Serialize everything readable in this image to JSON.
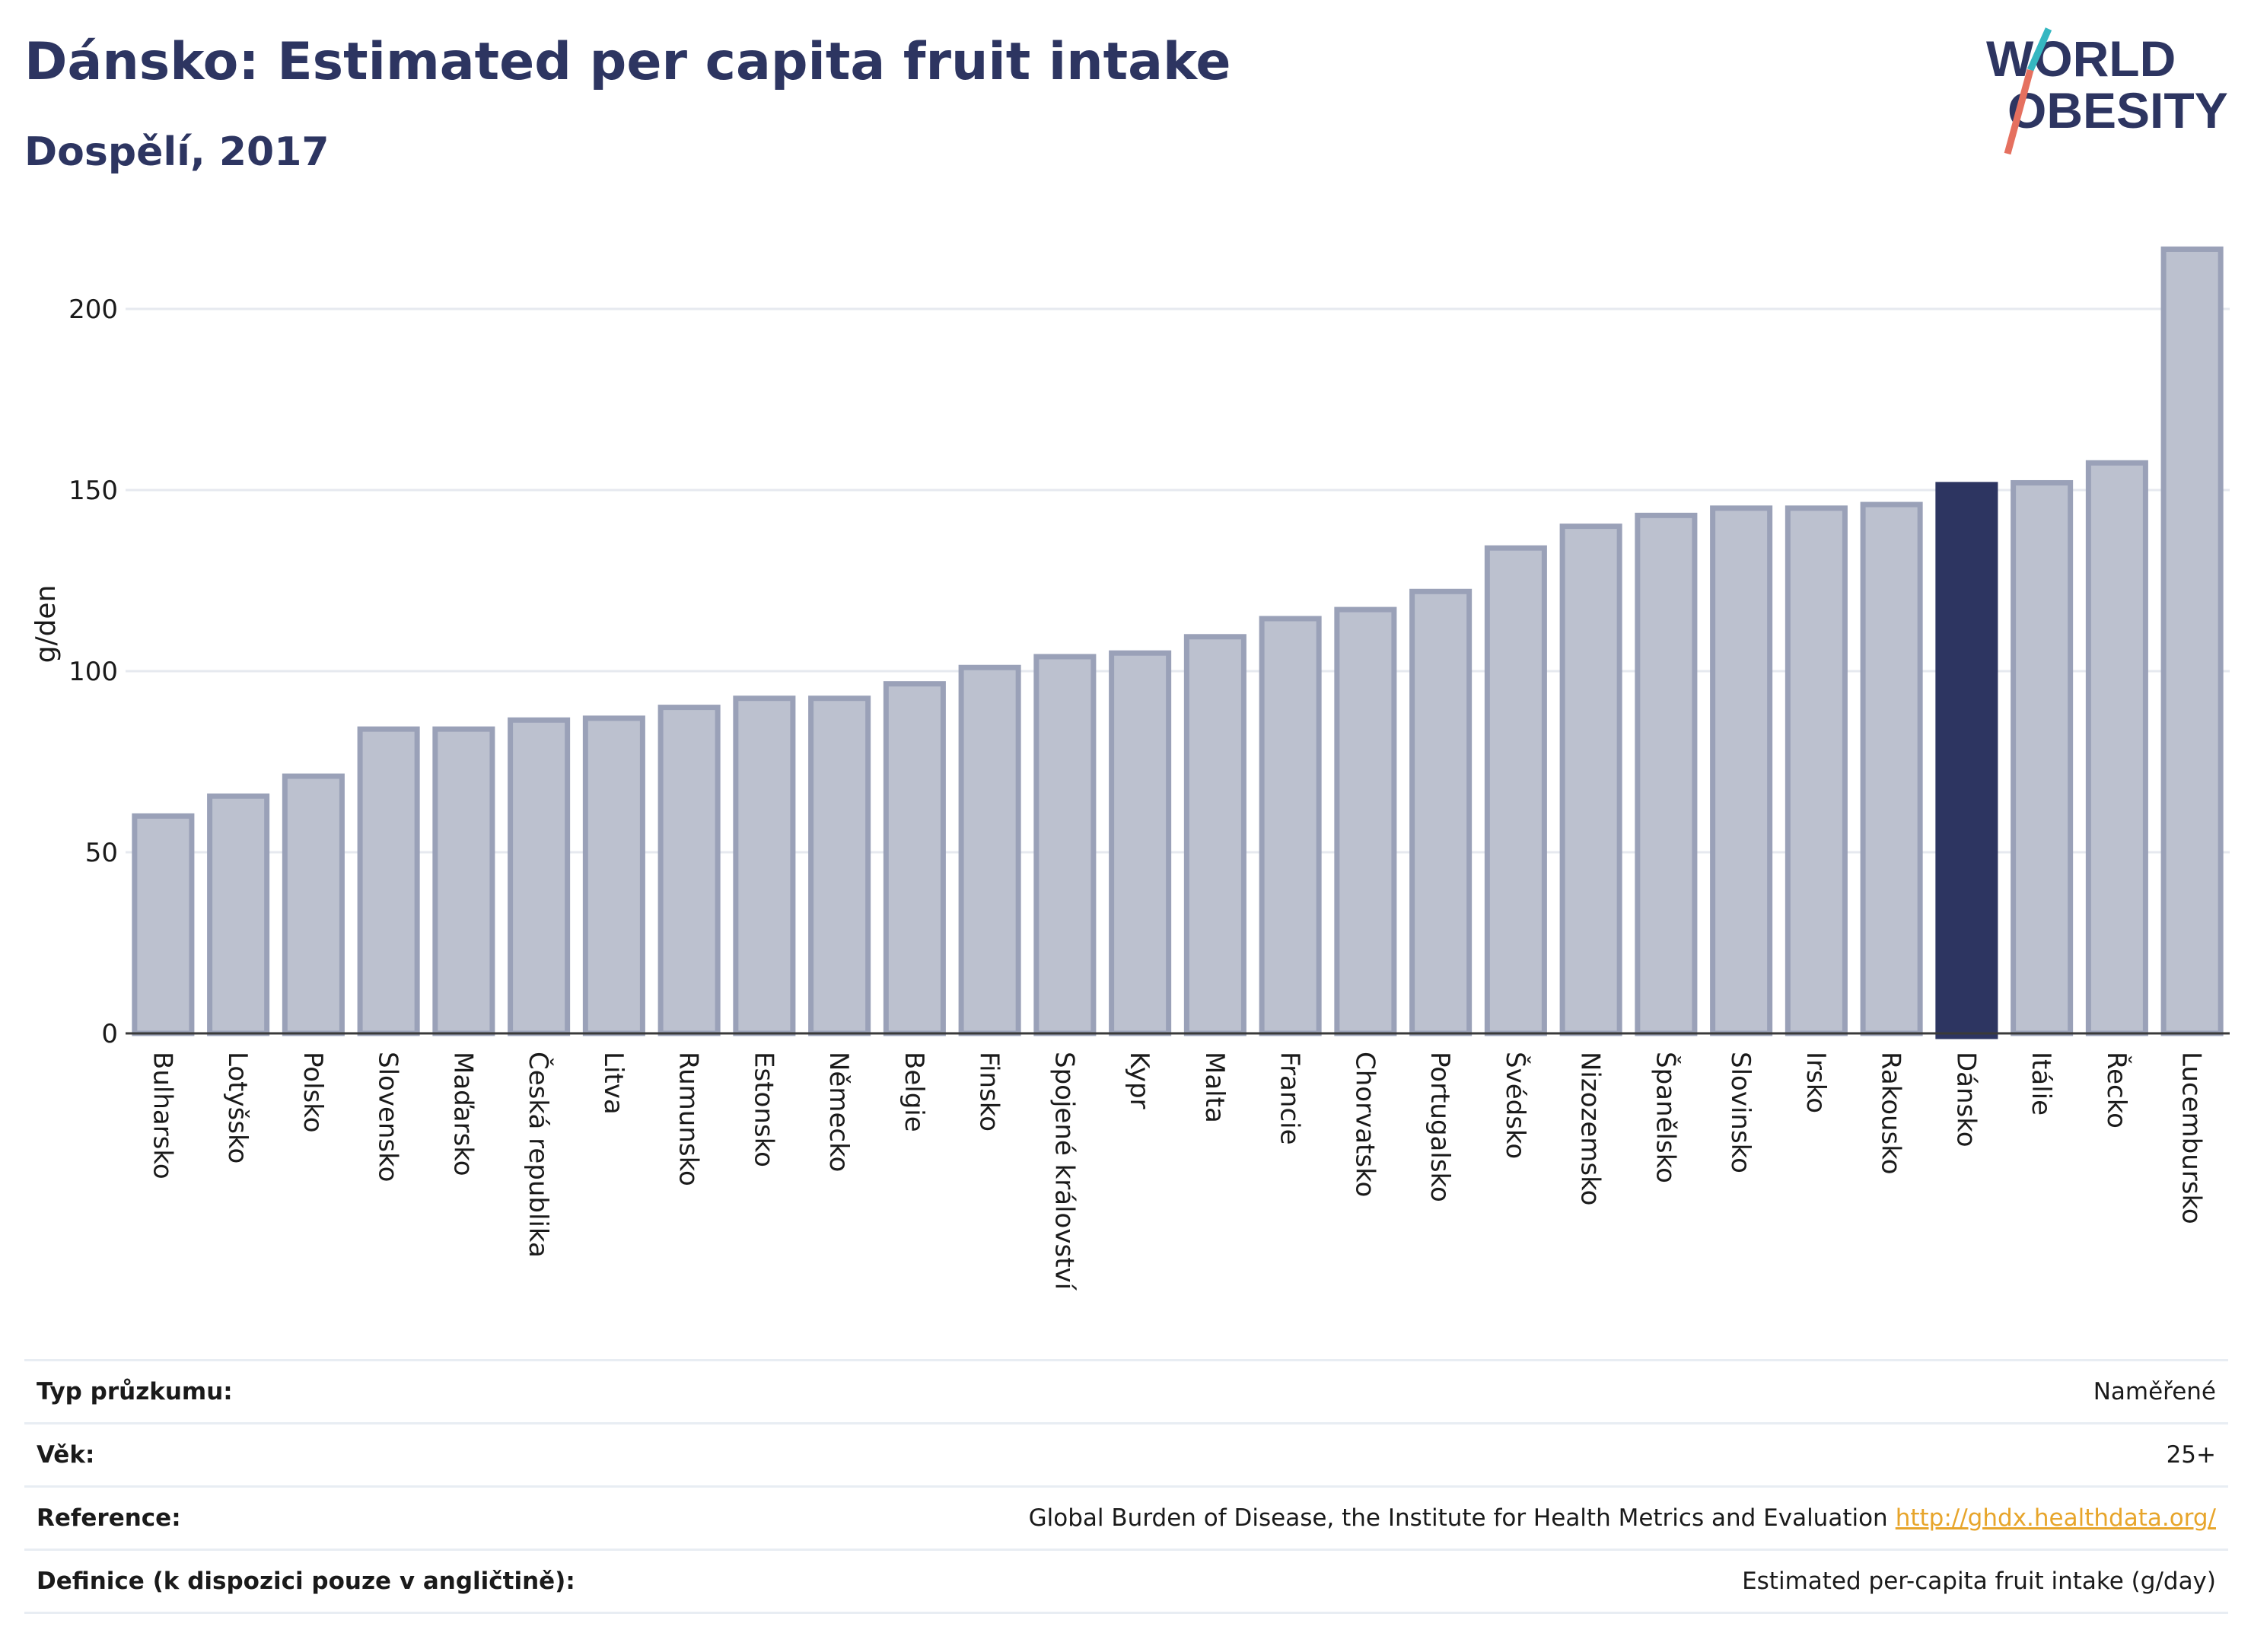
{
  "header": {
    "title": "Dánsko: Estimated per capita fruit intake",
    "subtitle": "Dospělí, 2017"
  },
  "logo": {
    "line1": "WORLD",
    "line2": "OBESITY"
  },
  "colors": {
    "bar": "#bcc1cf",
    "bar_outline": "#9aa1b8",
    "highlight": "#2d3561",
    "text": "#2d3561",
    "link": "#e7a52b"
  },
  "chart_data": {
    "type": "bar",
    "ylabel": "g/den",
    "ylim": [
      0,
      220
    ],
    "yticks": [
      0,
      50,
      100,
      150,
      200
    ],
    "grid": true,
    "highlight": "Dánsko",
    "categories": [
      "Bulharsko",
      "Lotyšsko",
      "Polsko",
      "Slovensko",
      "Maďarsko",
      "Česká republika",
      "Litva",
      "Rumunsko",
      "Estonsko",
      "Německo",
      "Belgie",
      "Finsko",
      "Spojené království",
      "Kypr",
      "Malta",
      "Francie",
      "Chorvatsko",
      "Portugalsko",
      "Švédsko",
      "Nizozemsko",
      "Španělsko",
      "Slovinsko",
      "Irsko",
      "Rakousko",
      "Dánsko",
      "Itálie",
      "Řecko",
      "Lucembursko"
    ],
    "values": [
      60,
      65.5,
      71,
      84,
      84,
      86.5,
      87,
      90,
      92.5,
      92.5,
      96.5,
      101,
      104,
      105,
      109.5,
      114.5,
      117,
      122,
      134,
      140,
      143,
      145,
      145,
      146,
      151.5,
      152,
      157.5,
      216.5
    ]
  },
  "info": [
    {
      "label": "Typ průzkumu:",
      "value": "Naměřené"
    },
    {
      "label": "Věk:",
      "value": "25+"
    },
    {
      "label": "Reference:",
      "value": "Global Burden of Disease, the Institute for Health Metrics and Evaluation",
      "link": "http://ghdx.healthdata.org/"
    },
    {
      "label": "Definice (k dispozici pouze v angličtině):",
      "value": "Estimated per-capita fruit intake (g/day)"
    }
  ]
}
